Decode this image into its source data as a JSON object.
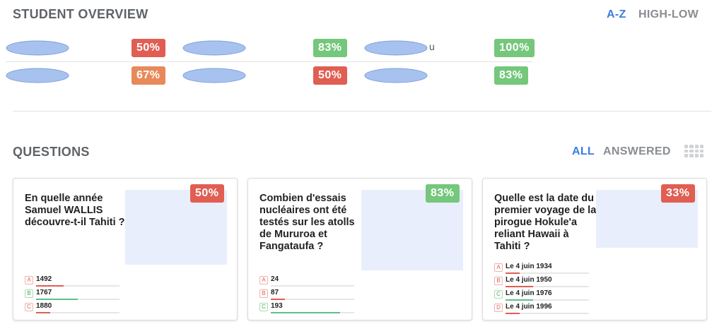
{
  "overview": {
    "title": "STUDENT OVERVIEW",
    "sort_az": "A-Z",
    "sort_high_low": "HIGH-LOW"
  },
  "students": [
    {
      "tail": "",
      "score": "50%",
      "color": "red"
    },
    {
      "tail": "",
      "score": "83%",
      "color": "green"
    },
    {
      "tail": "u",
      "score": "100%",
      "color": "green"
    },
    {
      "tail": "",
      "score": "67%",
      "color": "orange"
    },
    {
      "tail": "",
      "score": "50%",
      "color": "red"
    },
    {
      "tail": "",
      "score": "83%",
      "color": "green"
    }
  ],
  "questions_header": {
    "title": "QUESTIONS",
    "filter_all": "ALL",
    "filter_answered": "ANSWERED",
    "grid_icon": "grid-view-icon"
  },
  "questions": [
    {
      "text": "En quelle année Samuel WALLIS découvre-t-il Tahiti ?",
      "score": "50%",
      "color": "red",
      "answers": [
        {
          "letter": "A",
          "text": "1492",
          "fraction": 0.33,
          "correct": false
        },
        {
          "letter": "B",
          "text": "1767",
          "fraction": 0.5,
          "correct": true
        },
        {
          "letter": "C",
          "text": "1880",
          "fraction": 0.17,
          "correct": false
        }
      ]
    },
    {
      "text": "Combien d'essais nucléaires ont été testés sur les atolls de Mururoa et Fangataufa ?",
      "score": "83%",
      "color": "green",
      "answers": [
        {
          "letter": "A",
          "text": "24",
          "fraction": 0,
          "correct": false
        },
        {
          "letter": "B",
          "text": "87",
          "fraction": 0.17,
          "correct": false
        },
        {
          "letter": "C",
          "text": "193",
          "fraction": 0.83,
          "correct": true
        }
      ]
    },
    {
      "text": "Quelle est la date du premier voyage de la pirogue Hokule'a reliant Hawaii à Tahiti ?",
      "score": "33%",
      "color": "red",
      "answers": [
        {
          "letter": "A",
          "text": "Le 4 juin 1934",
          "fraction": 0.17,
          "correct": false
        },
        {
          "letter": "B",
          "text": "Le 4 juin 1950",
          "fraction": 0.33,
          "correct": false
        },
        {
          "letter": "C",
          "text": "Le 4 juin 1976",
          "fraction": 0.33,
          "correct": true
        },
        {
          "letter": "D",
          "text": "Le 4 juin 1996",
          "fraction": 0.17,
          "correct": false
        }
      ]
    }
  ]
}
